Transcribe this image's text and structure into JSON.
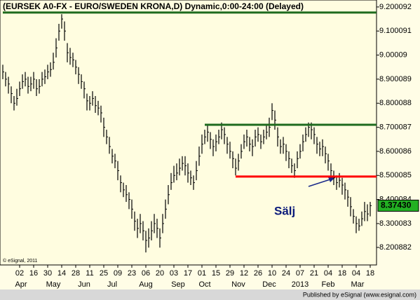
{
  "chart_data": {
    "type": "ohlc",
    "title": "(EURSEK A0-FX - EURO/SWEDEN KRONA,D) Dynamic,0:00-24:00 (Delayed)",
    "copyright": "© eSignal, 2011",
    "footer": "Published by eSignal (www.esignal.com)",
    "annotation": "Sälj",
    "color": "#000000",
    "ylim": [
      8.128,
      9.229
    ],
    "yticks": [
      9.200092,
      9.100091,
      9.00009,
      8.900089,
      8.800088,
      8.700087,
      8.600086,
      8.500085,
      8.400084,
      8.300083,
      8.200882
    ],
    "xlim": [
      0,
      131
    ],
    "xticks": [
      {
        "value": 6,
        "label": "02"
      },
      {
        "value": 11,
        "label": "16"
      },
      {
        "value": 16,
        "label": "30"
      },
      {
        "value": 21,
        "label": "14"
      },
      {
        "value": 26,
        "label": "28"
      },
      {
        "value": 31,
        "label": "11"
      },
      {
        "value": 36,
        "label": "25"
      },
      {
        "value": 41,
        "label": "09"
      },
      {
        "value": 46,
        "label": "23"
      },
      {
        "value": 51,
        "label": "06"
      },
      {
        "value": 56,
        "label": "20"
      },
      {
        "value": 61,
        "label": "03"
      },
      {
        "value": 66,
        "label": "17"
      },
      {
        "value": 71,
        "label": "01"
      },
      {
        "value": 76,
        "label": "15"
      },
      {
        "value": 81,
        "label": "29"
      },
      {
        "value": 86,
        "label": "12"
      },
      {
        "value": 91,
        "label": "26"
      },
      {
        "value": 96,
        "label": "10"
      },
      {
        "value": 101,
        "label": "24"
      },
      {
        "value": 106,
        "label": "07"
      },
      {
        "value": 111,
        "label": "21"
      },
      {
        "value": 116,
        "label": "04"
      },
      {
        "value": 121,
        "label": "18"
      },
      {
        "value": 126,
        "label": "04"
      },
      {
        "value": 131,
        "label": "18"
      }
    ],
    "month_ticks": [
      {
        "value": 6.5,
        "label": "Apr"
      },
      {
        "value": 18,
        "label": "May"
      },
      {
        "value": 29,
        "label": "Jun"
      },
      {
        "value": 39,
        "label": "Jul"
      },
      {
        "value": 51,
        "label": "Aug"
      },
      {
        "value": 62.5,
        "label": "Sep"
      },
      {
        "value": 72,
        "label": "Oct"
      },
      {
        "value": 84,
        "label": "Nov"
      },
      {
        "value": 95,
        "label": "Dec"
      },
      {
        "value": 106,
        "label": "2013"
      },
      {
        "value": 116,
        "label": "Feb"
      },
      {
        "value": 126.5,
        "label": "Mar"
      }
    ],
    "last_price": {
      "value": 8.3743,
      "label": "8.37430"
    },
    "lines": [
      {
        "price": 9.177,
        "start": 0,
        "color": "#1e6b1e"
      },
      {
        "price": 8.7107,
        "start": 72,
        "color": "#1e6b1e"
      },
      {
        "price": 8.4952,
        "start": 83,
        "color": "#ff0000"
      }
    ],
    "high": [
      8.96,
      8.93,
      8.91,
      8.87,
      8.83,
      8.86,
      8.89,
      8.92,
      8.93,
      8.91,
      8.91,
      8.93,
      8.9,
      8.9,
      8.93,
      8.94,
      8.96,
      8.97,
      9.01,
      9.07,
      9.13,
      9.17,
      9.14,
      9.05,
      9.03,
      9.01,
      8.98,
      8.95,
      8.92,
      8.89,
      8.84,
      8.83,
      8.85,
      8.83,
      8.81,
      8.79,
      8.74,
      8.69,
      8.66,
      8.61,
      8.59,
      8.56,
      8.5,
      8.47,
      8.46,
      8.43,
      8.4,
      8.35,
      8.32,
      8.34,
      8.31,
      8.27,
      8.28,
      8.31,
      8.34,
      8.32,
      8.28,
      8.34,
      8.4,
      8.46,
      8.51,
      8.54,
      8.55,
      8.57,
      8.58,
      8.58,
      8.55,
      8.52,
      8.5,
      8.56,
      8.62,
      8.67,
      8.69,
      8.71,
      8.68,
      8.65,
      8.67,
      8.69,
      8.72,
      8.7,
      8.66,
      8.64,
      8.6,
      8.57,
      8.59,
      8.63,
      8.67,
      8.69,
      8.66,
      8.65,
      8.69,
      8.7,
      8.67,
      8.69,
      8.71,
      8.74,
      8.8,
      8.77,
      8.7,
      8.65,
      8.66,
      8.63,
      8.6,
      8.57,
      8.55,
      8.6,
      8.63,
      8.67,
      8.7,
      8.72,
      8.72,
      8.7,
      8.66,
      8.64,
      8.65,
      8.62,
      8.59,
      8.55,
      8.52,
      8.5,
      8.51,
      8.49,
      8.47,
      8.44,
      8.41,
      8.36,
      8.33,
      8.32,
      8.35,
      8.39,
      8.38,
      8.39
    ],
    "low": [
      8.9,
      8.87,
      8.84,
      8.8,
      8.77,
      8.79,
      8.83,
      8.86,
      8.87,
      8.84,
      8.85,
      8.86,
      8.83,
      8.84,
      8.87,
      8.88,
      8.9,
      8.91,
      8.94,
      8.99,
      9.06,
      9.11,
      9.06,
      8.97,
      8.96,
      8.95,
      8.92,
      8.88,
      8.86,
      8.82,
      8.77,
      8.77,
      8.79,
      8.76,
      8.75,
      8.72,
      8.66,
      8.63,
      8.59,
      8.55,
      8.53,
      8.48,
      8.43,
      8.41,
      8.39,
      8.36,
      8.32,
      8.27,
      8.24,
      8.26,
      8.23,
      8.18,
      8.2,
      8.23,
      8.26,
      8.24,
      8.2,
      8.26,
      8.32,
      8.38,
      8.44,
      8.47,
      8.48,
      8.5,
      8.52,
      8.5,
      8.47,
      8.46,
      8.44,
      8.48,
      8.54,
      8.59,
      8.63,
      8.64,
      8.61,
      8.58,
      8.6,
      8.63,
      8.65,
      8.63,
      8.59,
      8.57,
      8.53,
      8.5,
      8.52,
      8.57,
      8.61,
      8.62,
      8.6,
      8.58,
      8.62,
      8.64,
      8.61,
      8.63,
      8.65,
      8.66,
      8.73,
      8.69,
      8.62,
      8.59,
      8.59,
      8.56,
      8.53,
      8.51,
      8.49,
      8.53,
      8.57,
      8.6,
      8.64,
      8.66,
      8.65,
      8.63,
      8.59,
      8.58,
      8.58,
      8.55,
      8.52,
      8.49,
      8.46,
      8.44,
      8.45,
      8.42,
      8.4,
      8.37,
      8.33,
      8.3,
      8.26,
      8.27,
      8.29,
      8.31,
      8.31,
      8.33
    ],
    "close": [
      8.93,
      8.9,
      8.88,
      8.84,
      8.8,
      8.82,
      8.86,
      8.89,
      8.9,
      8.87,
      8.88,
      8.9,
      8.86,
      8.87,
      8.9,
      8.91,
      8.93,
      8.94,
      8.97,
      9.03,
      9.1,
      9.15,
      9.1,
      9.01,
      8.99,
      8.98,
      8.95,
      8.92,
      8.89,
      8.86,
      8.81,
      8.8,
      8.82,
      8.79,
      8.78,
      8.76,
      8.7,
      8.66,
      8.62,
      8.58,
      8.56,
      8.52,
      8.47,
      8.44,
      8.42,
      8.4,
      8.36,
      8.31,
      8.28,
      8.3,
      8.27,
      8.23,
      8.24,
      8.27,
      8.3,
      8.28,
      8.24,
      8.3,
      8.36,
      8.42,
      8.47,
      8.5,
      8.51,
      8.53,
      8.55,
      8.54,
      8.51,
      8.49,
      8.47,
      8.52,
      8.58,
      8.63,
      8.66,
      8.68,
      8.65,
      8.62,
      8.64,
      8.66,
      8.69,
      8.67,
      8.63,
      8.6,
      8.57,
      8.53,
      8.56,
      8.6,
      8.64,
      8.66,
      8.63,
      8.62,
      8.66,
      8.67,
      8.64,
      8.66,
      8.68,
      8.7,
      8.77,
      8.73,
      8.66,
      8.62,
      8.63,
      8.6,
      8.57,
      8.54,
      8.52,
      8.57,
      8.6,
      8.64,
      8.67,
      8.7,
      8.69,
      8.67,
      8.63,
      8.61,
      8.62,
      8.59,
      8.56,
      8.52,
      8.49,
      8.47,
      8.48,
      8.46,
      8.44,
      8.41,
      8.37,
      8.33,
      8.3,
      8.29,
      8.32,
      8.35,
      8.34,
      8.3743
    ]
  }
}
